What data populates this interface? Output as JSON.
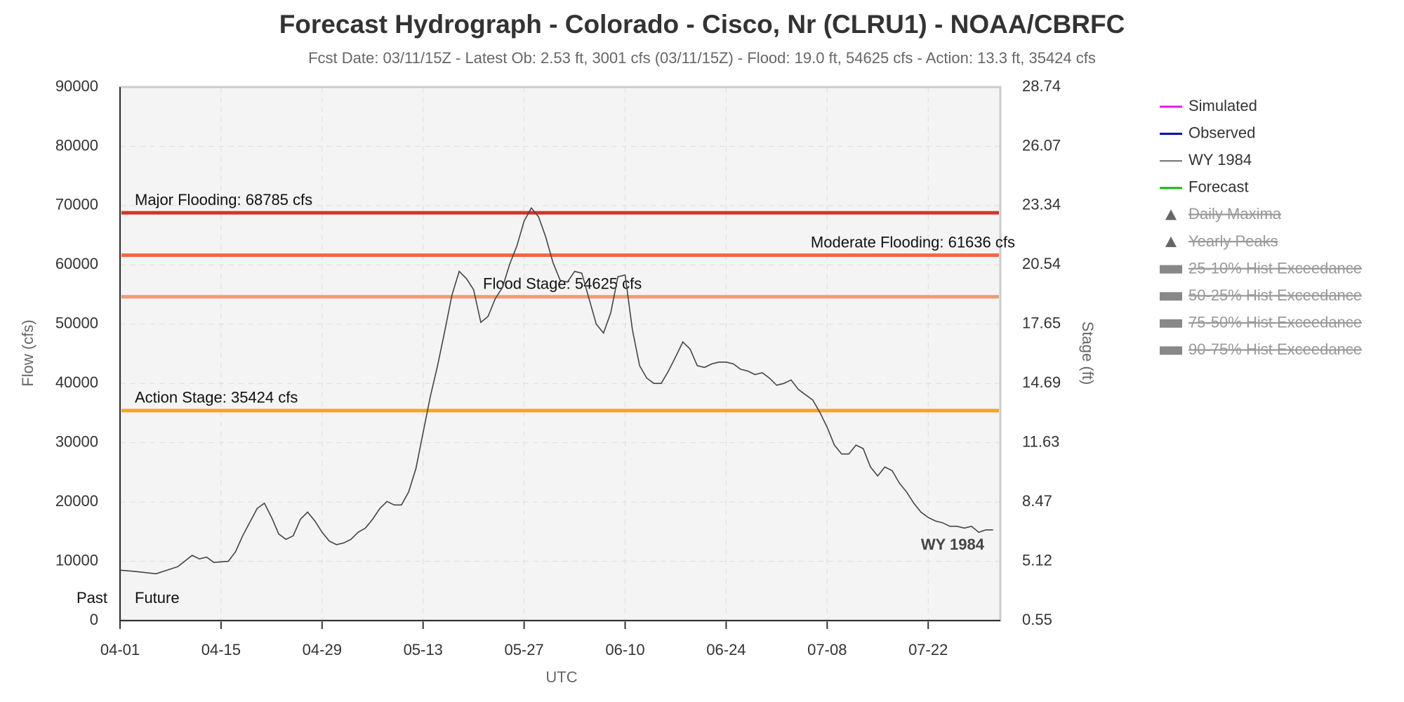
{
  "chart_data": {
    "type": "line",
    "title": "Forecast Hydrograph - Colorado - Cisco, Nr (CLRU1) - NOAA/CBRFC",
    "subtitle": "Fcst Date: 03/11/15Z - Latest Ob: 2.53 ft, 3001 cfs (03/11/15Z) - Flood: 19.0 ft, 54625 cfs - Action: 13.3 ft, 35424 cfs",
    "xlabel": "UTC",
    "ylabel": "Flow (cfs)",
    "y2label": "Stage (ft)",
    "x": [
      "04-01",
      "04-03",
      "04-06",
      "04-09",
      "04-11",
      "04-12",
      "04-13",
      "04-14",
      "04-16",
      "04-17",
      "04-18",
      "04-20",
      "04-21",
      "04-22",
      "04-23",
      "04-24",
      "04-25",
      "04-26",
      "04-27",
      "04-28",
      "04-29",
      "04-30",
      "05-01",
      "05-02",
      "05-03",
      "05-04",
      "05-05",
      "05-06",
      "05-07",
      "05-08",
      "05-09",
      "05-10",
      "05-11",
      "05-12",
      "05-13",
      "05-14",
      "05-15",
      "05-16",
      "05-17",
      "05-18",
      "05-19",
      "05-20",
      "05-21",
      "05-22",
      "05-23",
      "05-24",
      "05-25",
      "05-26",
      "05-27",
      "05-28",
      "05-29",
      "05-30",
      "05-31",
      "06-01",
      "06-02",
      "06-03",
      "06-04",
      "06-05",
      "06-06",
      "06-07",
      "06-08",
      "06-09",
      "06-10",
      "06-11",
      "06-12",
      "06-13",
      "06-14",
      "06-15",
      "06-16",
      "06-17",
      "06-18",
      "06-19",
      "06-20",
      "06-21",
      "06-22",
      "06-23",
      "06-24",
      "06-25",
      "06-26",
      "06-27",
      "06-28",
      "06-29",
      "06-30",
      "07-01",
      "07-02",
      "07-03",
      "07-04",
      "07-05",
      "07-06",
      "07-07",
      "07-08",
      "07-09",
      "07-10",
      "07-11",
      "07-12",
      "07-13",
      "07-14",
      "07-15",
      "07-16",
      "07-17",
      "07-18",
      "07-19",
      "07-20",
      "07-21",
      "07-22",
      "07-23",
      "07-24",
      "07-25",
      "07-26",
      "07-27",
      "07-28",
      "07-29",
      "07-30",
      "07-31"
    ],
    "series": [
      {
        "name": "WY 1984",
        "color": "#444444",
        "values": [
          8500,
          8300,
          7900,
          9100,
          11000,
          10400,
          10700,
          9800,
          10000,
          11600,
          14300,
          18900,
          19800,
          17400,
          14600,
          13700,
          14300,
          17100,
          18300,
          16800,
          14900,
          13400,
          12800,
          13100,
          13700,
          14900,
          15600,
          17100,
          18900,
          20100,
          19500,
          19500,
          21700,
          25600,
          31700,
          37800,
          43000,
          48800,
          54900,
          58900,
          57700,
          55800,
          50300,
          51300,
          54300,
          56200,
          60100,
          63200,
          67400,
          69600,
          68100,
          64700,
          60400,
          57400,
          57100,
          58900,
          58600,
          54300,
          50000,
          48500,
          51900,
          58000,
          58300,
          49100,
          43000,
          40900,
          40000,
          40000,
          42100,
          44500,
          47000,
          45800,
          43000,
          42700,
          43300,
          43600,
          43600,
          43300,
          42400,
          42100,
          41500,
          41800,
          40900,
          39700,
          40000,
          40600,
          39000,
          38100,
          37200,
          35100,
          32600,
          29600,
          28100,
          28100,
          29600,
          29000,
          25900,
          24400,
          25900,
          25300,
          23200,
          21700,
          19800,
          18300,
          17400,
          16800,
          16500,
          15900,
          15900,
          15600,
          15900,
          14900,
          15300,
          15300
        ]
      }
    ],
    "xlim": [
      "04-01",
      "08-01"
    ],
    "xticks": [
      "04-01",
      "04-15",
      "04-29",
      "05-13",
      "05-27",
      "06-10",
      "06-24",
      "07-08",
      "07-22"
    ],
    "ylim": [
      0,
      90000
    ],
    "yticks": [
      0,
      10000,
      20000,
      30000,
      40000,
      50000,
      60000,
      70000,
      80000,
      90000
    ],
    "y2lim": [
      0.55,
      28.74
    ],
    "y2ticks": [
      0.55,
      5.12,
      8.47,
      11.63,
      14.69,
      17.65,
      20.54,
      23.34,
      26.07,
      28.74
    ],
    "grid": true,
    "thresholds": [
      {
        "value": 68785,
        "label": "Major Flooding: 68785 cfs",
        "color": "#d9302c"
      },
      {
        "value": 61636,
        "label": "Moderate Flooding: 61636 cfs",
        "color": "#f0694a"
      },
      {
        "value": 54625,
        "label": "Flood Stage: 54625 cfs",
        "color": "#f5977c"
      },
      {
        "value": 35424,
        "label": "Action Stage: 35424 cfs",
        "color": "#f7a51c"
      }
    ],
    "annotations": {
      "past": "Past",
      "future": "Future",
      "series_label": "WY 1984"
    },
    "legend": [
      {
        "name": "Simulated",
        "color": "#e619e6",
        "symbol": "line",
        "visible": true
      },
      {
        "name": "Observed",
        "color": "#0a0aa0",
        "symbol": "line",
        "visible": true
      },
      {
        "name": "WY 1984",
        "color": "#444444",
        "symbol": "thin",
        "visible": true
      },
      {
        "name": "Forecast",
        "color": "#18b818",
        "symbol": "line",
        "visible": true
      },
      {
        "name": "Daily Maxima",
        "color": "#666666",
        "symbol": "triangle",
        "visible": false
      },
      {
        "name": "Yearly Peaks",
        "color": "#666666",
        "symbol": "triangle",
        "visible": false
      },
      {
        "name": "25-10% Hist Exceedance",
        "color": "#888888",
        "symbol": "band",
        "visible": false
      },
      {
        "name": "50-25% Hist Exceedance",
        "color": "#888888",
        "symbol": "band",
        "visible": false
      },
      {
        "name": "75-50% Hist Exceedance",
        "color": "#888888",
        "symbol": "band",
        "visible": false
      },
      {
        "name": "90-75% Hist Exceedance",
        "color": "#888888",
        "symbol": "band",
        "visible": false
      }
    ]
  }
}
